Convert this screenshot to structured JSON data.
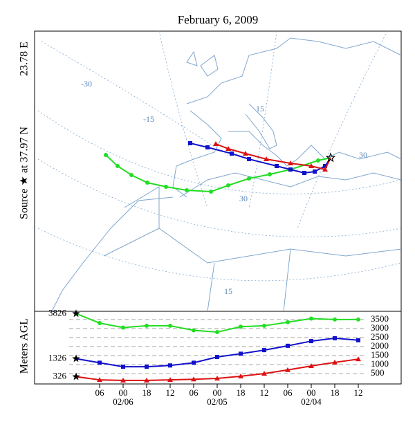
{
  "title": "February 6, 2009",
  "source_label": [
    "Source ★ at 37.97 N",
    "23.78 E"
  ],
  "map": {
    "graticule_labels": [
      "-30",
      "-15",
      "15",
      "30",
      "30",
      "15"
    ]
  },
  "chart_data": {
    "type": "line",
    "y_label": "Meters AGL",
    "categories": [
      null,
      "06",
      "00",
      "18",
      "12",
      "06",
      "00",
      "18",
      "12",
      "06",
      "00",
      "18",
      "12"
    ],
    "date_labels": [
      "02/06",
      "02/05",
      "02/04"
    ],
    "series": [
      {
        "color": "#22dd22",
        "marker": "circle",
        "values": [
          3826,
          3300,
          3050,
          3150,
          3150,
          2900,
          2800,
          3100,
          3150,
          3350,
          3550,
          3500,
          3500
        ]
      },
      {
        "color": "#1111cc",
        "marker": "square",
        "values": [
          1326,
          1100,
          880,
          880,
          950,
          1100,
          1420,
          1600,
          1800,
          2040,
          2300,
          2460,
          2350
        ]
      },
      {
        "color": "#dd1111",
        "marker": "triangle",
        "values": [
          326,
          150,
          120,
          120,
          150,
          180,
          230,
          350,
          500,
          700,
          920,
          1120,
          1300
        ]
      }
    ],
    "ylim": [
      0,
      3800
    ],
    "yticks": [
      500,
      1000,
      1500,
      2000,
      2500,
      3000,
      3500
    ],
    "grid": true
  }
}
